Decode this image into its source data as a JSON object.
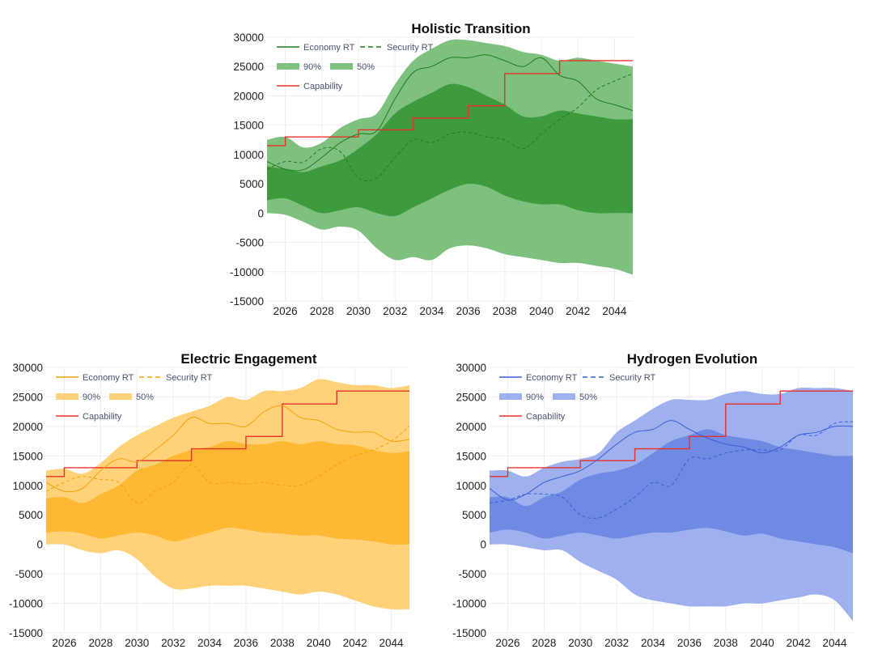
{
  "chart_data": [
    {
      "type": "area",
      "title": "Holistic Transition",
      "xlabel": "",
      "ylabel": "",
      "xlim": [
        2025,
        2045
      ],
      "ylim": [
        -15000,
        30000
      ],
      "xticks": [
        2026,
        2028,
        2030,
        2032,
        2034,
        2036,
        2038,
        2040,
        2042,
        2044
      ],
      "yticks": [
        -15000,
        -10000,
        -5000,
        0,
        5000,
        10000,
        15000,
        20000,
        25000,
        30000
      ],
      "grid": true,
      "legend_position": "top-left",
      "colors": {
        "line": "#1e7d1e",
        "band90": "#7ec07e",
        "band50": "#3d9b3d",
        "capability": "#e8302a"
      },
      "legend": {
        "economy": "Economy RT",
        "security": "Security RT",
        "band90": "90%",
        "band50": "50%",
        "capability": "Capability"
      },
      "x": [
        2025,
        2026,
        2027,
        2028,
        2029,
        2030,
        2031,
        2032,
        2033,
        2034,
        2035,
        2036,
        2037,
        2038,
        2039,
        2040,
        2041,
        2042,
        2043,
        2044,
        2045
      ],
      "series": [
        {
          "name": "Economy RT",
          "style": "solid",
          "values": [
            8800,
            7500,
            7400,
            9500,
            12000,
            13500,
            14000,
            19500,
            24000,
            25000,
            26500,
            26500,
            27000,
            26000,
            25000,
            26500,
            23500,
            22500,
            19500,
            18500,
            17500
          ]
        },
        {
          "name": "Security RT",
          "style": "dashed",
          "values": [
            7500,
            8800,
            8700,
            11000,
            10500,
            6000,
            6000,
            9500,
            12500,
            12000,
            13500,
            13800,
            13000,
            12500,
            11000,
            13500,
            16000,
            18000,
            21000,
            22500,
            23800
          ]
        }
      ],
      "bands": [
        {
          "name": "90%",
          "upper": [
            12500,
            13000,
            11200,
            12000,
            14500,
            16000,
            17000,
            22000,
            26000,
            28000,
            29500,
            29500,
            29000,
            28500,
            27500,
            27000,
            26000,
            26500,
            26000,
            25500,
            25000
          ],
          "lower": [
            0,
            -300,
            -1500,
            -2800,
            -2300,
            -3000,
            -6000,
            -8000,
            -7500,
            -8000,
            -6000,
            -5500,
            -6000,
            -7000,
            -7500,
            -8000,
            -8500,
            -8500,
            -9000,
            -9500,
            -10500
          ]
        },
        {
          "name": "50%",
          "upper": [
            8000,
            7500,
            7000,
            8000,
            9000,
            11000,
            13500,
            17000,
            19000,
            20500,
            22000,
            21500,
            20000,
            18500,
            16500,
            16500,
            17500,
            17000,
            16500,
            16000,
            16000
          ],
          "lower": [
            2200,
            2500,
            1200,
            0,
            500,
            1000,
            0,
            -500,
            1000,
            2500,
            4000,
            5000,
            4500,
            3000,
            2000,
            1500,
            1500,
            500,
            0,
            0,
            0
          ]
        }
      ],
      "capability": {
        "name": "Capability",
        "steps": [
          [
            2025,
            11500
          ],
          [
            2026,
            13000
          ],
          [
            2030,
            14200
          ],
          [
            2033,
            16200
          ],
          [
            2036,
            18300
          ],
          [
            2038,
            23800
          ],
          [
            2041,
            26000
          ],
          [
            2045,
            26000
          ]
        ]
      }
    },
    {
      "type": "area",
      "title": "Electric Engagement",
      "xlabel": "",
      "ylabel": "",
      "xlim": [
        2025,
        2045
      ],
      "ylim": [
        -15000,
        30000
      ],
      "xticks": [
        2026,
        2028,
        2030,
        2032,
        2034,
        2036,
        2038,
        2040,
        2042,
        2044
      ],
      "yticks": [
        -15000,
        -10000,
        -5000,
        0,
        5000,
        10000,
        15000,
        20000,
        25000,
        30000
      ],
      "grid": true,
      "legend_position": "top-left",
      "colors": {
        "line": "#f0a30a",
        "band90": "#ffd27a",
        "band50": "#ffb833",
        "capability": "#e8302a"
      },
      "legend": {
        "economy": "Economy RT",
        "security": "Security RT",
        "band90": "90%",
        "band50": "50%",
        "capability": "Capability"
      },
      "x": [
        2025,
        2026,
        2027,
        2028,
        2029,
        2030,
        2031,
        2032,
        2033,
        2034,
        2035,
        2036,
        2037,
        2038,
        2039,
        2040,
        2041,
        2042,
        2043,
        2044,
        2045
      ],
      "series": [
        {
          "name": "Economy RT",
          "style": "solid",
          "values": [
            10500,
            9000,
            9500,
            12500,
            14500,
            14000,
            16000,
            18500,
            21500,
            20500,
            20500,
            20000,
            22500,
            23500,
            21500,
            21000,
            19500,
            19000,
            19000,
            17500,
            17800
          ]
        },
        {
          "name": "Security RT",
          "style": "dashed",
          "values": [
            9000,
            10500,
            11500,
            11000,
            10500,
            7000,
            9000,
            10500,
            13500,
            10500,
            10500,
            10200,
            10500,
            10000,
            10000,
            11500,
            13500,
            15000,
            16000,
            17500,
            20000
          ]
        },
        {
          "name": "Capability",
          "style": "step"
        }
      ],
      "bands": [
        {
          "name": "90%",
          "upper": [
            12500,
            12800,
            12000,
            13800,
            16500,
            18500,
            20000,
            21500,
            22500,
            23500,
            25000,
            24500,
            26000,
            26000,
            26500,
            28000,
            27500,
            27000,
            27000,
            26500,
            27000
          ],
          "lower": [
            0,
            0,
            -1000,
            -1500,
            -1000,
            -2500,
            -5500,
            -7500,
            -7500,
            -7000,
            -7000,
            -7000,
            -7500,
            -8000,
            -8500,
            -8000,
            -8500,
            -9500,
            -10500,
            -11000,
            -11000
          ]
        },
        {
          "name": "50%",
          "upper": [
            7800,
            8000,
            7000,
            8500,
            10000,
            12500,
            13500,
            15000,
            16000,
            16500,
            17500,
            17000,
            17000,
            17500,
            17000,
            17500,
            17000,
            16800,
            16000,
            15500,
            15800
          ],
          "lower": [
            2000,
            2200,
            1800,
            1000,
            1500,
            2000,
            1500,
            500,
            1200,
            2000,
            2800,
            2500,
            2000,
            1800,
            1500,
            1500,
            1000,
            800,
            500,
            0,
            0
          ]
        }
      ],
      "capability": {
        "name": "Capability",
        "steps": [
          [
            2025,
            11500
          ],
          [
            2026,
            13000
          ],
          [
            2030,
            14200
          ],
          [
            2033,
            16200
          ],
          [
            2036,
            18300
          ],
          [
            2038,
            23800
          ],
          [
            2041,
            26000
          ],
          [
            2045,
            26000
          ]
        ]
      }
    },
    {
      "type": "area",
      "title": "Hydrogen Evolution",
      "xlabel": "",
      "ylabel": "",
      "xlim": [
        2025,
        2045
      ],
      "ylim": [
        -15000,
        30000
      ],
      "xticks": [
        2026,
        2028,
        2030,
        2032,
        2034,
        2036,
        2038,
        2040,
        2042,
        2044
      ],
      "yticks": [
        -15000,
        -10000,
        -5000,
        0,
        5000,
        10000,
        15000,
        20000,
        25000,
        30000
      ],
      "grid": true,
      "legend_position": "top-left",
      "colors": {
        "line": "#3b5ed6",
        "band90": "#9eb0ee",
        "band50": "#6f8ae3",
        "capability": "#e8302a"
      },
      "legend": {
        "economy": "Economy RT",
        "security": "Security RT",
        "band90": "90%",
        "band50": "50%",
        "capability": "Capability"
      },
      "x": [
        2025,
        2026,
        2027,
        2028,
        2029,
        2030,
        2031,
        2032,
        2033,
        2034,
        2035,
        2036,
        2037,
        2038,
        2039,
        2040,
        2041,
        2042,
        2043,
        2044,
        2045
      ],
      "series": [
        {
          "name": "Economy RT",
          "style": "solid",
          "values": [
            9500,
            7500,
            8500,
            10500,
            11500,
            12500,
            14500,
            17000,
            19000,
            19500,
            21000,
            19500,
            18000,
            17000,
            16500,
            15500,
            16500,
            18500,
            19000,
            20000,
            20000
          ]
        },
        {
          "name": "Security RT",
          "style": "dashed",
          "values": [
            7000,
            7500,
            8500,
            8500,
            8000,
            5000,
            4500,
            6000,
            8000,
            10500,
            10000,
            14500,
            14500,
            15500,
            16000,
            16000,
            16000,
            18500,
            18500,
            20500,
            20800
          ]
        }
      ],
      "bands": [
        {
          "name": "90%",
          "upper": [
            12500,
            12500,
            11500,
            13000,
            14000,
            14500,
            15500,
            19000,
            21000,
            23000,
            24500,
            24500,
            24500,
            25500,
            26000,
            25500,
            25500,
            26500,
            26500,
            26500,
            26000
          ],
          "lower": [
            0,
            0,
            -500,
            -1000,
            -1000,
            -3000,
            -4500,
            -6000,
            -8500,
            -9500,
            -10000,
            -10500,
            -10500,
            -10500,
            -10000,
            -10000,
            -9500,
            -9000,
            -8500,
            -9500,
            -13000
          ]
        },
        {
          "name": "50%",
          "upper": [
            8000,
            8000,
            6500,
            8000,
            9000,
            11000,
            12000,
            12500,
            13500,
            15500,
            17500,
            18500,
            19500,
            18500,
            18000,
            17500,
            16500,
            16000,
            15500,
            15000,
            15000
          ],
          "lower": [
            2000,
            2500,
            2000,
            1000,
            1500,
            2000,
            1500,
            1000,
            1500,
            2000,
            2000,
            2500,
            2800,
            2200,
            1500,
            1800,
            1000,
            500,
            0,
            -500,
            -1500
          ]
        }
      ],
      "capability": {
        "name": "Capability",
        "steps": [
          [
            2025,
            11500
          ],
          [
            2026,
            13000
          ],
          [
            2030,
            14200
          ],
          [
            2033,
            16200
          ],
          [
            2036,
            18300
          ],
          [
            2038,
            23800
          ],
          [
            2041,
            26000
          ],
          [
            2045,
            26000
          ]
        ]
      }
    }
  ]
}
